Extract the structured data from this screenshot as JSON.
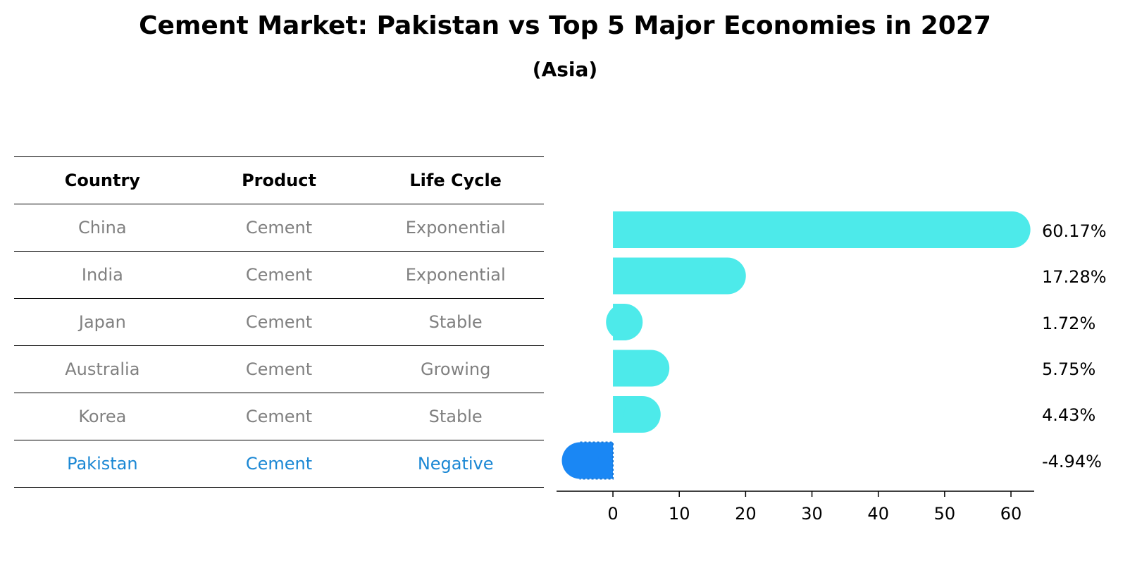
{
  "title": "Cement Market: Pakistan vs Top 5 Major Economies in 2027",
  "subtitle": "(Asia)",
  "table": {
    "headers": [
      "Country",
      "Product",
      "Life Cycle"
    ],
    "rows": [
      [
        "China",
        "Cement",
        "Exponential"
      ],
      [
        "India",
        "Cement",
        "Exponential"
      ],
      [
        "Japan",
        "Cement",
        "Stable"
      ],
      [
        "Australia",
        "Cement",
        "Growing"
      ],
      [
        "Korea",
        "Cement",
        "Stable"
      ],
      [
        "Pakistan",
        "Cement",
        "Negative"
      ]
    ],
    "highlight_row": 5
  },
  "colors": {
    "bar_positive": "#4deaea",
    "bar_negative": "#1a87f4",
    "highlight_text": "#1a87d4",
    "muted_text": "#808080"
  },
  "chart_data": {
    "type": "bar",
    "orientation": "horizontal",
    "categories": [
      "China",
      "India",
      "Japan",
      "Australia",
      "Korea",
      "Pakistan"
    ],
    "values": [
      60.17,
      17.28,
      1.72,
      5.75,
      4.43,
      -4.94
    ],
    "value_labels": [
      "60.17%",
      "17.28%",
      "1.72%",
      "5.75%",
      "4.43%",
      "-4.94%"
    ],
    "xlim": [
      -8.5,
      63.5
    ],
    "xticks": [
      0,
      10,
      20,
      30,
      40,
      50,
      60
    ],
    "xlabel": "",
    "ylabel": "",
    "grid": false
  }
}
